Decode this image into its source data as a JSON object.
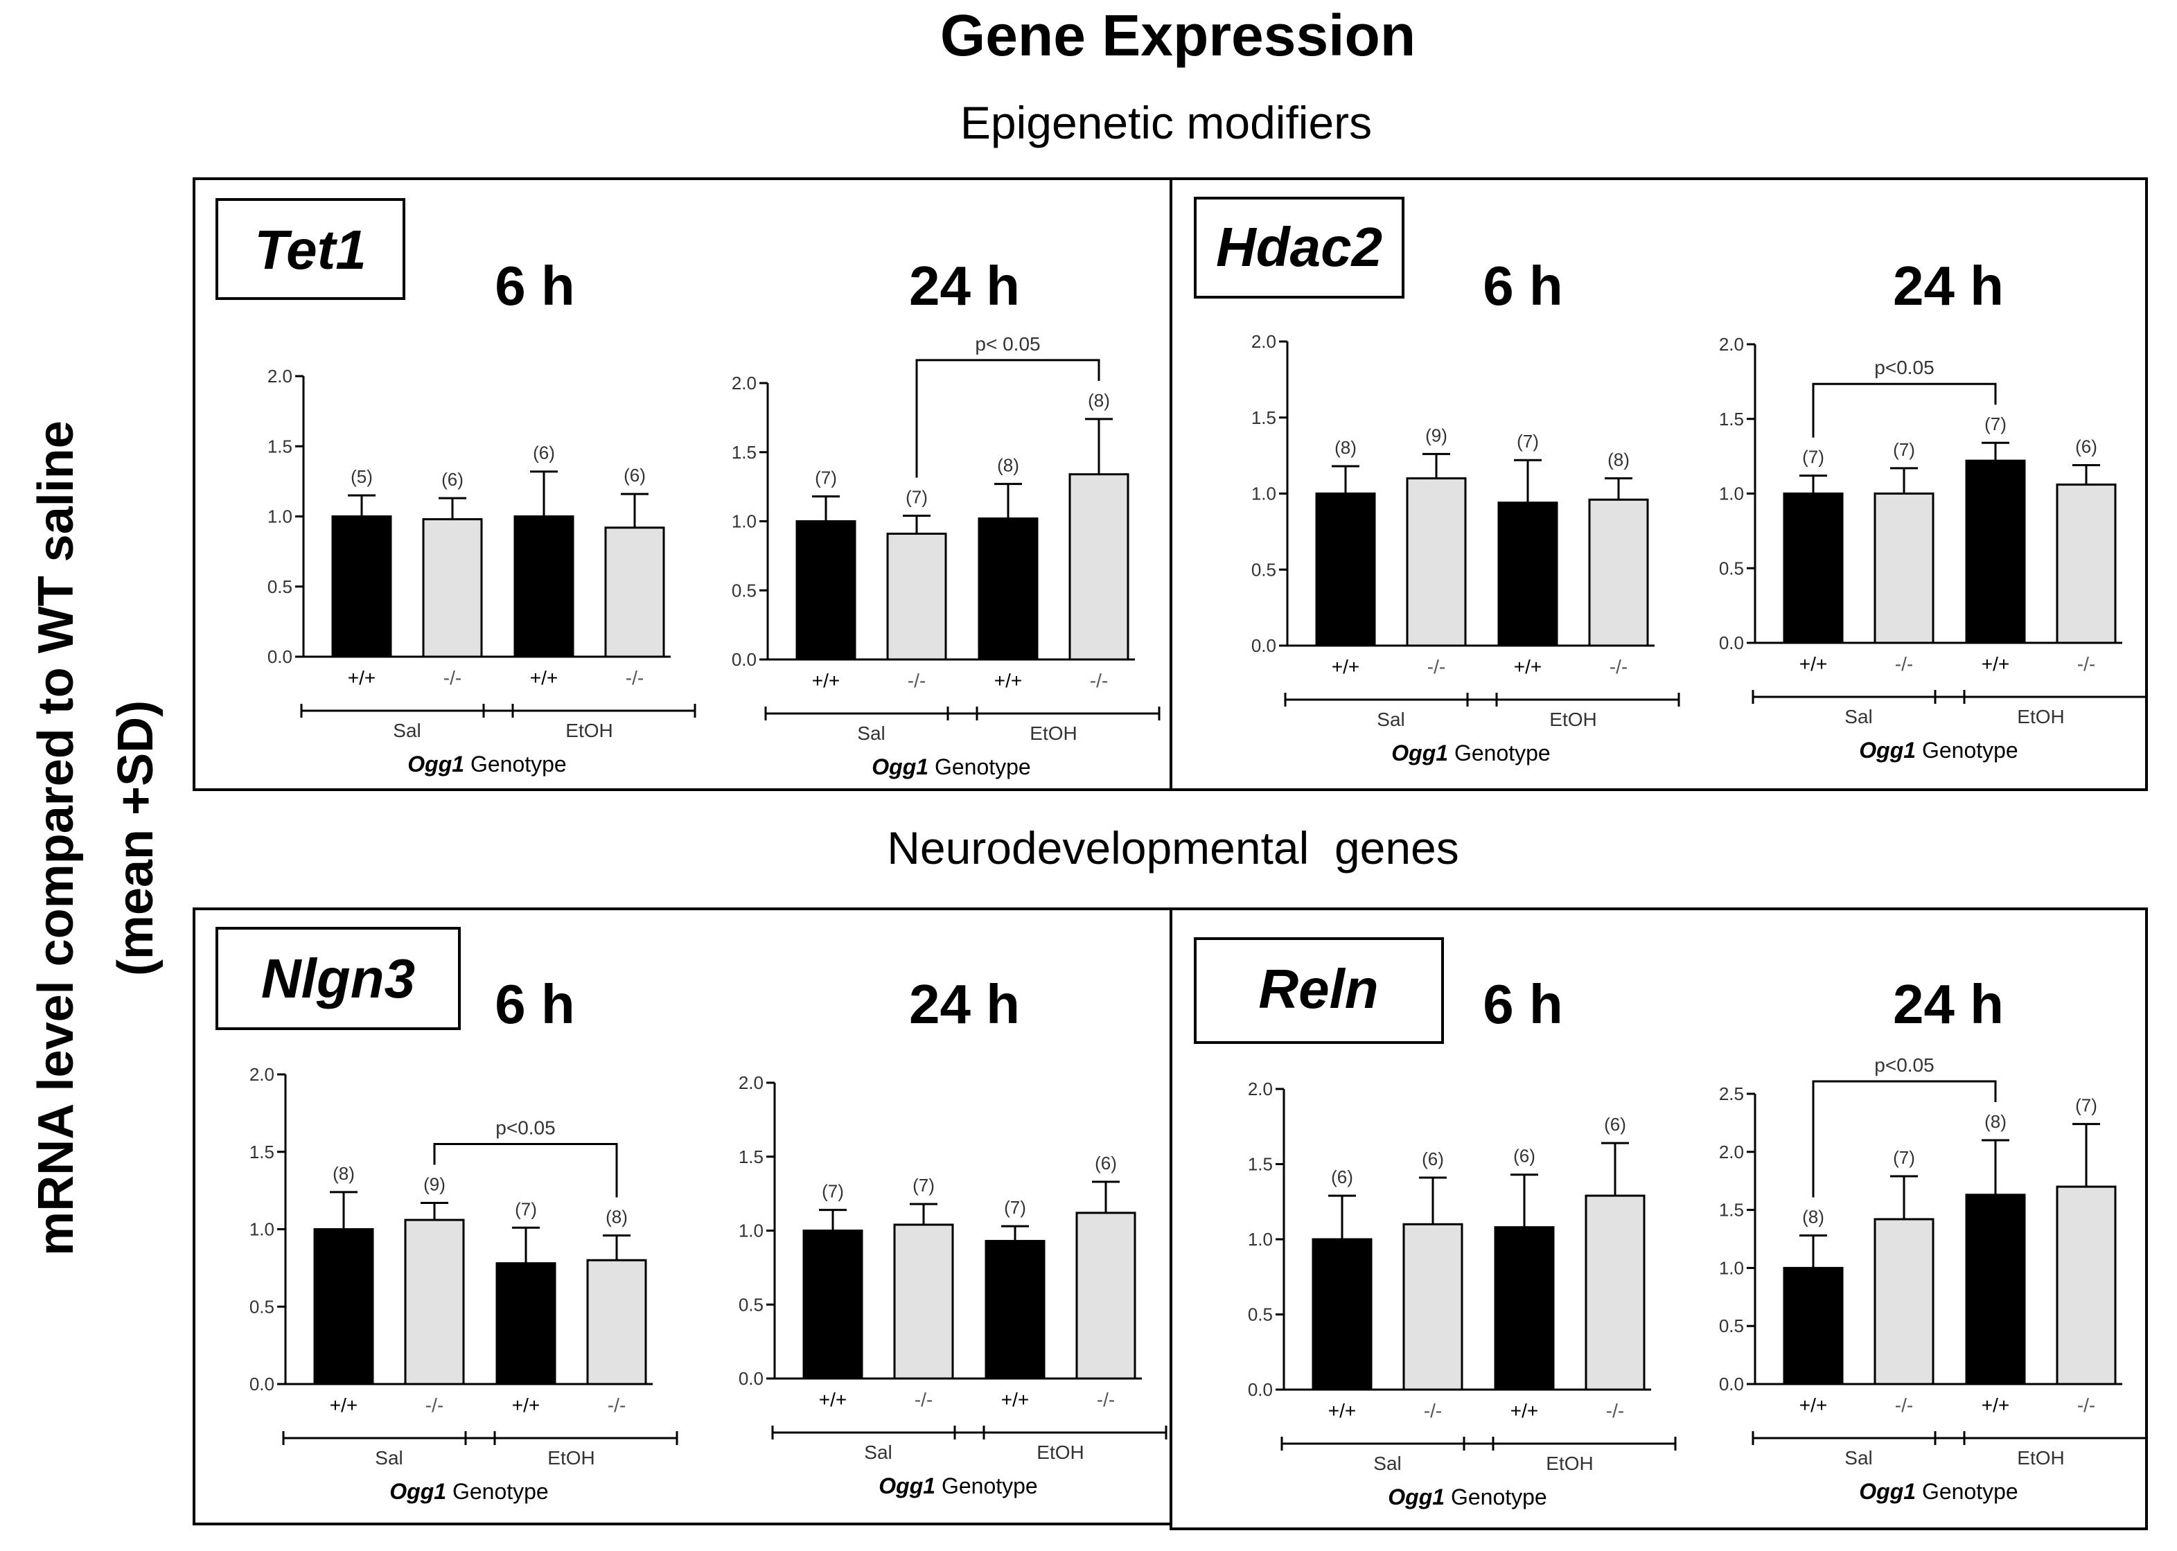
{
  "title": "Gene Expression",
  "y_axis_label": [
    "mRNA level compared to WT saline",
    "(mean +SD)"
  ],
  "sections": [
    {
      "title": "Epigenetic modifiers"
    },
    {
      "title": "Neurodevelopmental  genes"
    }
  ],
  "colors": {
    "wt_bar": "#000000",
    "ko_bar": "#e2e2e2",
    "outline": "#000000",
    "text": "#000000",
    "sig_text": "#333333"
  },
  "common": {
    "categories": [
      "+/+",
      "-/-",
      "+/+",
      "-/-"
    ],
    "groups": [
      "Sal",
      "EtOH"
    ],
    "xlabel_italic": "Ogg1",
    "xlabel_rest": " Genotype"
  },
  "panels": [
    {
      "gene": "Tet1"
    },
    {
      "gene": "Hdac2"
    },
    {
      "gene": "Nlgn3"
    },
    {
      "gene": "Reln"
    }
  ],
  "chart_data": [
    {
      "type": "bar",
      "gene": "Tet1",
      "time": "6 h",
      "categories": [
        "+/+",
        "-/-",
        "+/+",
        "-/-"
      ],
      "groups": [
        "Sal",
        "Sal",
        "EtOH",
        "EtOH"
      ],
      "values": [
        1.0,
        0.98,
        1.0,
        0.92
      ],
      "sd": [
        0.15,
        0.15,
        0.32,
        0.24
      ],
      "n": [
        "(5)",
        "(6)",
        "(6)",
        "(6)"
      ],
      "ylim": [
        0,
        2.0
      ],
      "yticks": [
        "0.0",
        "0.5",
        "1.0",
        "1.5",
        "2.0"
      ],
      "significance": []
    },
    {
      "type": "bar",
      "gene": "Tet1",
      "time": "24 h",
      "categories": [
        "+/+",
        "-/-",
        "+/+",
        "-/-"
      ],
      "groups": [
        "Sal",
        "Sal",
        "EtOH",
        "EtOH"
      ],
      "values": [
        1.0,
        0.91,
        1.02,
        1.34
      ],
      "sd": [
        0.18,
        0.13,
        0.25,
        0.4
      ],
      "n": [
        "(7)",
        "(7)",
        "(8)",
        "(8)"
      ],
      "ylim": [
        0,
        2.0
      ],
      "yticks": [
        "0.0",
        "0.5",
        "1.0",
        "1.5",
        "2.0"
      ],
      "significance": [
        {
          "from": 1,
          "to": 3,
          "label": "p< 0.05"
        }
      ]
    },
    {
      "type": "bar",
      "gene": "Hdac2",
      "time": "6 h",
      "categories": [
        "+/+",
        "-/-",
        "+/+",
        "-/-"
      ],
      "groups": [
        "Sal",
        "Sal",
        "EtOH",
        "EtOH"
      ],
      "values": [
        1.0,
        1.1,
        0.94,
        0.96
      ],
      "sd": [
        0.18,
        0.16,
        0.28,
        0.14
      ],
      "n": [
        "(8)",
        "(9)",
        "(7)",
        "(8)"
      ],
      "ylim": [
        0,
        2.0
      ],
      "yticks": [
        "0.0",
        "0.5",
        "1.0",
        "1.5",
        "2.0"
      ],
      "significance": []
    },
    {
      "type": "bar",
      "gene": "Hdac2",
      "time": "24 h",
      "categories": [
        "+/+",
        "-/-",
        "+/+",
        "-/-"
      ],
      "groups": [
        "Sal",
        "Sal",
        "EtOH",
        "EtOH"
      ],
      "values": [
        1.0,
        1.0,
        1.22,
        1.06
      ],
      "sd": [
        0.12,
        0.17,
        0.12,
        0.13
      ],
      "n": [
        "(7)",
        "(7)",
        "(7)",
        "(6)"
      ],
      "ylim": [
        0,
        2.0
      ],
      "yticks": [
        "0.0",
        "0.5",
        "1.0",
        "1.5",
        "2.0"
      ],
      "significance": [
        {
          "from": 0,
          "to": 2,
          "label": "p<0.05"
        }
      ]
    },
    {
      "type": "bar",
      "gene": "Nlgn3",
      "time": "6 h",
      "categories": [
        "+/+",
        "-/-",
        "+/+",
        "-/-"
      ],
      "groups": [
        "Sal",
        "Sal",
        "EtOH",
        "EtOH"
      ],
      "values": [
        1.0,
        1.06,
        0.78,
        0.8
      ],
      "sd": [
        0.24,
        0.11,
        0.23,
        0.16
      ],
      "n": [
        "(8)",
        "(9)",
        "(7)",
        "(8)"
      ],
      "ylim": [
        0,
        2.0
      ],
      "yticks": [
        "0.0",
        "0.5",
        "1.0",
        "1.5",
        "2.0"
      ],
      "significance": [
        {
          "from": 1,
          "to": 3,
          "label": "p<0.05"
        }
      ]
    },
    {
      "type": "bar",
      "gene": "Nlgn3",
      "time": "24 h",
      "categories": [
        "+/+",
        "-/-",
        "+/+",
        "-/-"
      ],
      "groups": [
        "Sal",
        "Sal",
        "EtOH",
        "EtOH"
      ],
      "values": [
        1.0,
        1.04,
        0.93,
        1.12
      ],
      "sd": [
        0.14,
        0.14,
        0.1,
        0.21
      ],
      "n": [
        "(7)",
        "(7)",
        "(7)",
        "(6)"
      ],
      "ylim": [
        0,
        2.0
      ],
      "yticks": [
        "0.0",
        "0.5",
        "1.0",
        "1.5",
        "2.0"
      ],
      "significance": []
    },
    {
      "type": "bar",
      "gene": "Reln",
      "time": "6 h",
      "categories": [
        "+/+",
        "-/-",
        "+/+",
        "-/-"
      ],
      "groups": [
        "Sal",
        "Sal",
        "EtOH",
        "EtOH"
      ],
      "values": [
        1.0,
        1.1,
        1.08,
        1.29
      ],
      "sd": [
        0.29,
        0.31,
        0.35,
        0.35
      ],
      "n": [
        "(6)",
        "(6)",
        "(6)",
        "(6)"
      ],
      "ylim": [
        0,
        2.0
      ],
      "yticks": [
        "0.0",
        "0.5",
        "1.0",
        "1.5",
        "2.0"
      ],
      "significance": []
    },
    {
      "type": "bar",
      "gene": "Reln",
      "time": "24 h",
      "categories": [
        "+/+",
        "-/-",
        "+/+",
        "-/-"
      ],
      "groups": [
        "Sal",
        "Sal",
        "EtOH",
        "EtOH"
      ],
      "values": [
        1.0,
        1.42,
        1.63,
        1.7
      ],
      "sd": [
        0.28,
        0.37,
        0.47,
        0.54
      ],
      "n": [
        "(8)",
        "(7)",
        "(8)",
        "(7)"
      ],
      "ylim": [
        0,
        2.5
      ],
      "yticks": [
        "0.0",
        "0.5",
        "1.0",
        "1.5",
        "2.0",
        "2.5"
      ],
      "significance": [
        {
          "from": 0,
          "to": 2,
          "label": "p<0.05"
        }
      ]
    }
  ]
}
